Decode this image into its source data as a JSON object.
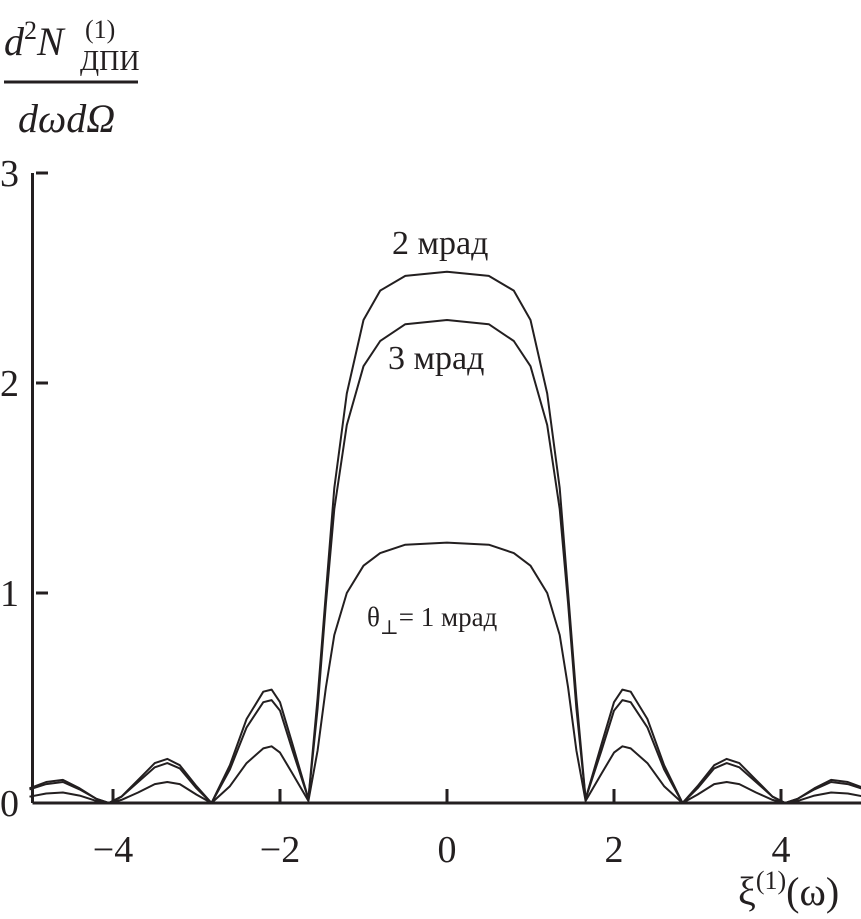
{
  "chart_data": {
    "type": "line",
    "title": "",
    "xlabel": {
      "base": "ξ",
      "sup": "(1)",
      "arg": "(ω)"
    },
    "ylabel": {
      "num_d": "d",
      "num_pow": "2",
      "num_var": "N",
      "num_sup": "(1)",
      "num_sub": "ДПИ",
      "denominator": "dωdΩ"
    },
    "xlim": [
      -5,
      5
    ],
    "ylim": [
      0,
      3
    ],
    "xticks": [
      -4,
      -2,
      0,
      2,
      4
    ],
    "xtick_labels": [
      "−4",
      "−2",
      "0",
      "2",
      "4"
    ],
    "yticks": [
      0,
      1,
      2,
      3
    ],
    "ytick_labels": [
      "0",
      "1",
      "2",
      "3"
    ],
    "grid": false,
    "line_color": "#231f20",
    "x": [
      -5,
      -4.8,
      -4.6,
      -4.4,
      -4.2,
      -4.05,
      -3.9,
      -3.7,
      -3.5,
      -3.35,
      -3.2,
      -3.0,
      -2.82,
      -2.6,
      -2.4,
      -2.2,
      -2.1,
      -2.0,
      -1.85,
      -1.66,
      -1.55,
      -1.45,
      -1.35,
      -1.2,
      -1.0,
      -0.8,
      -0.5,
      0,
      0.5,
      0.8,
      1.0,
      1.2,
      1.35,
      1.45,
      1.55,
      1.66,
      1.85,
      2.0,
      2.1,
      2.2,
      2.4,
      2.6,
      2.82,
      3.0,
      3.2,
      3.35,
      3.5,
      3.7,
      3.9,
      4.05,
      4.2,
      4.4,
      4.6,
      4.8,
      5
    ],
    "series": [
      {
        "name": "2 мрад",
        "values": [
          0.07,
          0.1,
          0.11,
          0.07,
          0.02,
          0,
          0.03,
          0.11,
          0.19,
          0.21,
          0.18,
          0.08,
          0,
          0.18,
          0.4,
          0.53,
          0.54,
          0.48,
          0.28,
          0.02,
          0.5,
          1.0,
          1.5,
          1.95,
          2.3,
          2.44,
          2.51,
          2.53,
          2.51,
          2.44,
          2.3,
          1.95,
          1.5,
          1.0,
          0.5,
          0.02,
          0.28,
          0.48,
          0.54,
          0.53,
          0.4,
          0.18,
          0,
          0.08,
          0.18,
          0.21,
          0.19,
          0.11,
          0.03,
          0,
          0.02,
          0.07,
          0.11,
          0.1,
          0.07
        ]
      },
      {
        "name": "3 мрад",
        "values": [
          0.065,
          0.09,
          0.1,
          0.065,
          0.02,
          0,
          0.03,
          0.1,
          0.17,
          0.19,
          0.165,
          0.07,
          0,
          0.16,
          0.36,
          0.48,
          0.49,
          0.44,
          0.25,
          0.02,
          0.45,
          0.95,
          1.4,
          1.8,
          2.08,
          2.2,
          2.28,
          2.3,
          2.28,
          2.2,
          2.08,
          1.8,
          1.4,
          0.95,
          0.45,
          0.02,
          0.25,
          0.44,
          0.49,
          0.48,
          0.36,
          0.16,
          0,
          0.07,
          0.165,
          0.19,
          0.17,
          0.1,
          0.03,
          0,
          0.02,
          0.065,
          0.1,
          0.09,
          0.065
        ]
      },
      {
        "name": "θ⊥= 1 мрад",
        "values": [
          0.03,
          0.045,
          0.05,
          0.035,
          0.01,
          0,
          0.015,
          0.05,
          0.09,
          0.1,
          0.09,
          0.04,
          0,
          0.08,
          0.19,
          0.26,
          0.27,
          0.24,
          0.14,
          0.01,
          0.25,
          0.55,
          0.8,
          1.0,
          1.13,
          1.19,
          1.23,
          1.24,
          1.23,
          1.19,
          1.13,
          1.0,
          0.8,
          0.55,
          0.25,
          0.01,
          0.14,
          0.24,
          0.27,
          0.26,
          0.19,
          0.08,
          0,
          0.04,
          0.09,
          0.1,
          0.09,
          0.05,
          0.015,
          0,
          0.01,
          0.035,
          0.05,
          0.045,
          0.03
        ]
      }
    ],
    "annotations": {
      "a2": "2 мрад",
      "a3": "3 мрад",
      "a1_theta": "θ",
      "a1_sub": "⊥",
      "a1_rest": "= 1 мрад"
    }
  }
}
